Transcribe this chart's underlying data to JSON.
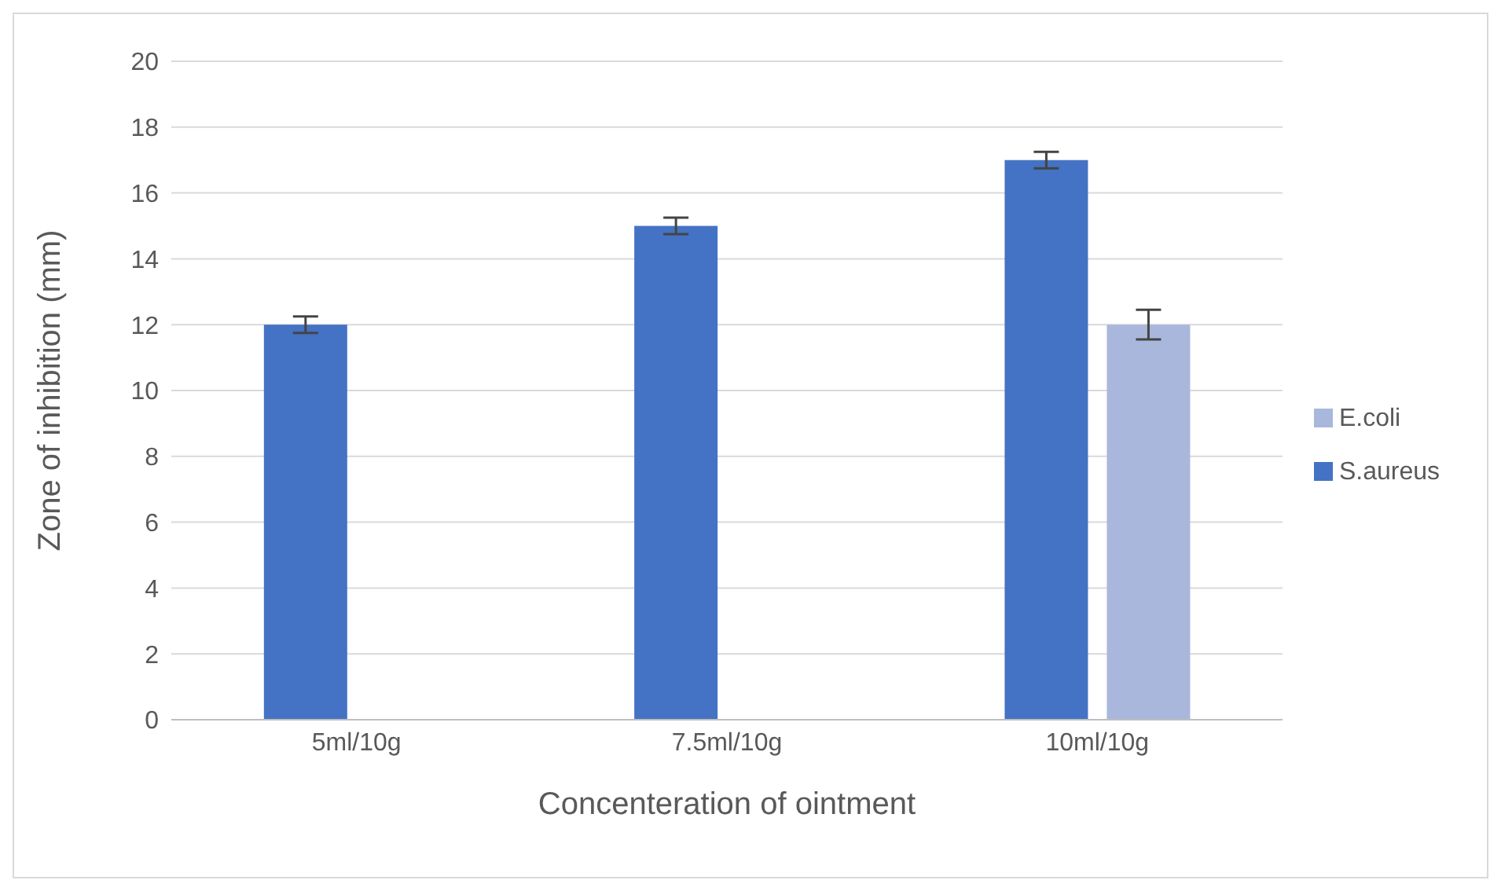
{
  "chart_data": {
    "type": "bar",
    "xlabel": "Concenteration of ointment",
    "ylabel": "Zone of inhibition (mm)",
    "categories": [
      "5ml/10g",
      "7.5ml/10g",
      "10ml/10g"
    ],
    "series": [
      {
        "name": "S.aureus",
        "color": "#4472c4",
        "values": [
          12,
          15,
          17
        ],
        "errors": [
          0.25,
          0.25,
          0.25
        ]
      },
      {
        "name": "E.coli",
        "color": "#a9b7dc",
        "values": [
          0,
          0,
          12
        ],
        "errors": [
          null,
          null,
          0.45
        ]
      }
    ],
    "ylim": [
      0,
      20
    ],
    "yticks": [
      0,
      2,
      4,
      6,
      8,
      10,
      12,
      14,
      16,
      18,
      20
    ],
    "grid": "y",
    "legend": "right"
  }
}
